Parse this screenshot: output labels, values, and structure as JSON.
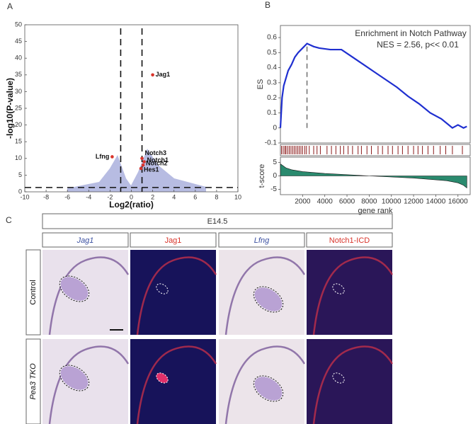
{
  "chart_data": [
    {
      "type": "scatter",
      "panel": "A",
      "xlabel": "Log2(ratio)",
      "ylabel": "-log10(P-value)",
      "xlim": [
        -10,
        10
      ],
      "ylim": [
        0,
        50
      ],
      "xticks": [
        -10,
        -8,
        -6,
        -4,
        -2,
        0,
        2,
        4,
        6,
        8,
        10
      ],
      "yticks": [
        0,
        5,
        10,
        15,
        20,
        25,
        30,
        35,
        40,
        45,
        50
      ],
      "vlines": [
        -1,
        1
      ],
      "hlines": [
        1.3
      ],
      "color": "#d9342b",
      "labels": [
        "Jag1",
        "Lfng",
        "Notch3",
        "Notch1",
        "Notch2",
        "Hes1"
      ],
      "x": [
        2.0,
        -1.8,
        1.0,
        1.2,
        1.1,
        0.9
      ],
      "values": [
        35,
        10.5,
        10,
        9,
        8,
        7
      ]
    },
    {
      "type": "gsea",
      "panel": "B",
      "title": "Enrichment in Notch Pathway",
      "subtitle": "NES = 2.56, p<< 0.01",
      "ylabel": "ES",
      "y2label": "t-score",
      "xlabel": "gene rank",
      "xlim": [
        0,
        17100
      ],
      "ylim": [
        -0.1,
        0.68
      ],
      "y2lim": [
        -7,
        7
      ],
      "xticks": [
        2000,
        4000,
        6000,
        8000,
        10000,
        12000,
        14000,
        16000
      ],
      "yticks": [
        -0.1,
        0,
        0.1,
        0.2,
        0.3,
        0.4,
        0.5,
        0.6
      ],
      "y2ticks": [
        -5,
        0,
        5
      ],
      "peak": 2400,
      "series": [
        {
          "name": "ES",
          "color": "#1f2fd0",
          "x": [
            0,
            150,
            300,
            500,
            700,
            1000,
            1300,
            1600,
            2000,
            2400,
            3000,
            3500,
            4500,
            5500,
            6500,
            7500,
            8500,
            9500,
            10500,
            11500,
            12500,
            13500,
            14500,
            15500,
            16000,
            16500,
            16800
          ],
          "values": [
            0,
            0.2,
            0.28,
            0.33,
            0.38,
            0.42,
            0.47,
            0.5,
            0.53,
            0.56,
            0.54,
            0.53,
            0.52,
            0.52,
            0.47,
            0.42,
            0.37,
            0.32,
            0.27,
            0.21,
            0.16,
            0.1,
            0.06,
            0,
            0.02,
            0,
            0.01
          ]
        },
        {
          "name": "t-score",
          "axis": "y2",
          "color": "#2a8a6e",
          "x": [
            0,
            500,
            1000,
            2000,
            4000,
            8000,
            12000,
            15000,
            16000,
            16500,
            16800
          ],
          "values": [
            4.5,
            3,
            2.3,
            1.6,
            0.9,
            0,
            -0.8,
            -1.8,
            -2.6,
            -3.5,
            -4.5
          ]
        }
      ],
      "hit_color": "#8b1a1a",
      "hits": [
        100,
        250,
        400,
        500,
        650,
        800,
        950,
        1100,
        1250,
        1400,
        1550,
        1700,
        1850,
        2000,
        2200,
        2350,
        2600,
        3000,
        3300,
        3600,
        4200,
        4600,
        5000,
        5400,
        5700,
        6100,
        6500,
        7000,
        7300,
        7800,
        8200,
        8800,
        9200,
        9700,
        10100,
        10600,
        11000,
        11500,
        12000,
        12400,
        12800,
        13300,
        13800,
        14400,
        14900,
        15500,
        16400
      ]
    }
  ],
  "panel_labels": [
    "A",
    "B",
    "C"
  ],
  "panel_c": {
    "stage": "E14.5",
    "columns": [
      {
        "label": "Jag1",
        "color": "#3a4fa0",
        "italic": true,
        "bg": "#e9e1ec"
      },
      {
        "label": "Jag1",
        "color": "#d9342b",
        "italic": false,
        "bg": "#17135a"
      },
      {
        "label": "Lfng",
        "color": "#3a4fa0",
        "italic": true,
        "bg": "#ece4ea"
      },
      {
        "label": "Notch1-ICD",
        "color": "#d9342b",
        "italic": false,
        "bg": "#2a1658"
      }
    ],
    "rows": [
      {
        "label": "Control",
        "italic": false
      },
      {
        "label": "Pea3 TKO",
        "italic": true
      }
    ]
  }
}
